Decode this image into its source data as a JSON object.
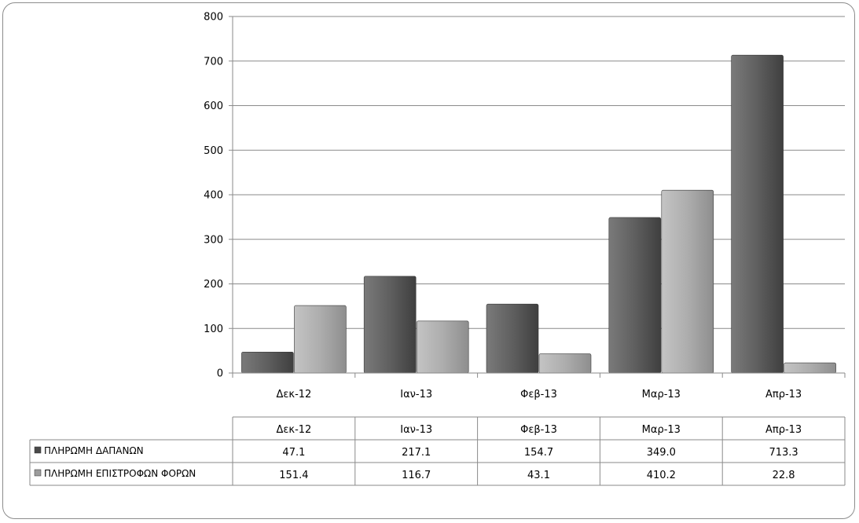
{
  "chart_data": {
    "type": "bar",
    "title": "",
    "xlabel": "",
    "ylabel": "",
    "categories": [
      "Δεκ-12",
      "Ιαν-13",
      "Φεβ-13",
      "Μαρ-13",
      "Απρ-13"
    ],
    "series": [
      {
        "name": "ΠΛΗΡΩΜΗ ΔΑΠΑΝΩΝ",
        "color": "#5f5f5f",
        "values": [
          47.1,
          217.1,
          154.7,
          349.0,
          713.3
        ],
        "labels": [
          "47.1",
          "217.1",
          "154.7",
          "349.0",
          "713.3"
        ]
      },
      {
        "name": "ΠΛΗΡΩΜΗ ΕΠΙΣΤΡΟΦΩΝ ΦΟΡΩΝ",
        "color": "#aaaaaa",
        "values": [
          151.4,
          116.7,
          43.1,
          410.2,
          22.8
        ],
        "labels": [
          "151.4",
          "116.7",
          "43.1",
          "410.2",
          "22.8"
        ]
      }
    ],
    "ylim": [
      0,
      800
    ],
    "yticks": [
      "0",
      "100",
      "200",
      "300",
      "400",
      "500",
      "600",
      "700",
      "800"
    ],
    "grid": true,
    "legend": "data-table-bottom"
  }
}
